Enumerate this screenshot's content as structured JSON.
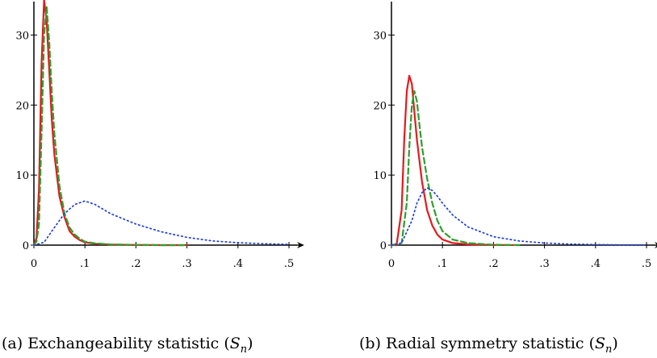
{
  "chart_data": [
    {
      "type": "line",
      "caption_prefix": "(a) Exchangeability statistic (",
      "caption_var": "S",
      "caption_sub": "n",
      "caption_suffix": ")",
      "xlim": [
        0,
        0.53
      ],
      "ylim": [
        0,
        35
      ],
      "x_ticks": [
        0,
        0.1,
        0.2,
        0.3,
        0.4,
        0.5
      ],
      "x_tick_labels": [
        "0",
        ".1",
        ".2",
        ".3",
        ".4",
        ".5"
      ],
      "y_ticks": [
        0,
        10,
        20,
        30
      ],
      "y_tick_labels": [
        "0",
        "10",
        "20",
        "30"
      ],
      "series": [
        {
          "style": "solid",
          "color": "#e41a1c",
          "x": [
            0.0,
            0.005,
            0.01,
            0.015,
            0.02,
            0.025,
            0.03,
            0.035,
            0.04,
            0.05,
            0.06,
            0.07,
            0.08,
            0.09,
            0.1,
            0.12,
            0.15,
            0.2,
            0.25,
            0.3
          ],
          "y": [
            0.0,
            1.0,
            8.0,
            26.0,
            35.0,
            32.0,
            25.0,
            18.0,
            13.0,
            7.0,
            4.0,
            2.0,
            1.2,
            0.7,
            0.4,
            0.2,
            0.08,
            0.02,
            0.0,
            0.0
          ]
        },
        {
          "style": "dashed",
          "color": "#2e9e2e",
          "x": [
            0.0,
            0.005,
            0.01,
            0.015,
            0.02,
            0.025,
            0.03,
            0.035,
            0.04,
            0.05,
            0.06,
            0.07,
            0.08,
            0.09,
            0.1,
            0.12,
            0.15,
            0.2,
            0.25,
            0.3
          ],
          "y": [
            0.0,
            0.5,
            3.0,
            16.0,
            30.0,
            34.0,
            29.0,
            22.0,
            16.0,
            8.5,
            4.5,
            2.5,
            1.5,
            0.9,
            0.5,
            0.25,
            0.1,
            0.03,
            0.0,
            0.0
          ]
        },
        {
          "style": "dotted",
          "color": "#1f3fd6",
          "x": [
            0.0,
            0.02,
            0.04,
            0.06,
            0.08,
            0.1,
            0.12,
            0.15,
            0.2,
            0.25,
            0.3,
            0.35,
            0.4,
            0.45,
            0.5
          ],
          "y": [
            0.0,
            0.4,
            2.5,
            4.5,
            5.8,
            6.3,
            5.8,
            4.5,
            3.0,
            1.9,
            1.1,
            0.6,
            0.35,
            0.2,
            0.1
          ]
        }
      ]
    },
    {
      "type": "line",
      "caption_prefix": "(b) Radial symmetry statistic (",
      "caption_var": "S",
      "caption_sub": "n",
      "caption_suffix": ")",
      "xlim": [
        0,
        0.53
      ],
      "ylim": [
        0,
        35
      ],
      "x_ticks": [
        0,
        0.1,
        0.2,
        0.3,
        0.4,
        0.5
      ],
      "x_tick_labels": [
        "0",
        ".1",
        ".2",
        ".3",
        ".4",
        ".5"
      ],
      "y_ticks": [
        0,
        10,
        20,
        30
      ],
      "y_tick_labels": [
        "0",
        "10",
        "20",
        "30"
      ],
      "series": [
        {
          "style": "solid",
          "color": "#e41a1c",
          "x": [
            0.0,
            0.01,
            0.02,
            0.025,
            0.03,
            0.035,
            0.04,
            0.045,
            0.05,
            0.06,
            0.07,
            0.08,
            0.09,
            0.1,
            0.12,
            0.15,
            0.2,
            0.25
          ],
          "y": [
            0.0,
            0.0,
            5.0,
            15.0,
            22.0,
            24.2,
            23.0,
            19.0,
            15.0,
            9.0,
            5.0,
            2.8,
            1.5,
            0.8,
            0.3,
            0.1,
            0.02,
            0.0
          ]
        },
        {
          "style": "dashed",
          "color": "#2e9e2e",
          "x": [
            0.0,
            0.02,
            0.03,
            0.035,
            0.04,
            0.045,
            0.05,
            0.055,
            0.06,
            0.07,
            0.08,
            0.09,
            0.1,
            0.12,
            0.15,
            0.2,
            0.25
          ],
          "y": [
            0.0,
            0.3,
            6.0,
            14.0,
            20.0,
            22.0,
            20.5,
            17.0,
            14.0,
            9.5,
            6.0,
            3.5,
            2.0,
            0.8,
            0.3,
            0.05,
            0.0
          ]
        },
        {
          "style": "dotted",
          "color": "#1f3fd6",
          "x": [
            0.0,
            0.02,
            0.04,
            0.05,
            0.06,
            0.07,
            0.08,
            0.09,
            0.1,
            0.12,
            0.15,
            0.2,
            0.25,
            0.3,
            0.35,
            0.4,
            0.45,
            0.5
          ],
          "y": [
            0.0,
            0.3,
            3.5,
            6.0,
            7.5,
            8.2,
            7.8,
            7.0,
            6.0,
            4.3,
            2.6,
            1.2,
            0.6,
            0.3,
            0.15,
            0.08,
            0.04,
            0.02
          ]
        }
      ]
    }
  ]
}
